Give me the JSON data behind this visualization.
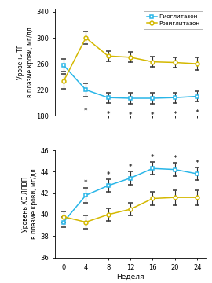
{
  "weeks": [
    0,
    4,
    8,
    12,
    16,
    20,
    24
  ],
  "tg_pio": [
    258,
    220,
    208,
    207,
    207,
    208,
    210
  ],
  "tg_rosi": [
    233,
    300,
    272,
    270,
    263,
    262,
    260
  ],
  "tg_pio_err": [
    10,
    10,
    8,
    8,
    8,
    8,
    8
  ],
  "tg_rosi_err": [
    12,
    10,
    8,
    8,
    8,
    8,
    10
  ],
  "hdl_pio": [
    39.3,
    41.8,
    42.7,
    43.4,
    44.3,
    44.2,
    43.8
  ],
  "hdl_rosi": [
    39.8,
    39.3,
    40.0,
    40.5,
    41.5,
    41.6,
    41.6
  ],
  "hdl_pio_err": [
    0.5,
    0.7,
    0.6,
    0.6,
    0.6,
    0.6,
    0.6
  ],
  "hdl_rosi_err": [
    0.5,
    0.6,
    0.6,
    0.6,
    0.6,
    0.7,
    0.7
  ],
  "color_pio": "#29b6e8",
  "color_rosi": "#d4b800",
  "tg_ylim": [
    180,
    345
  ],
  "tg_yticks": [
    180,
    220,
    260,
    300,
    340
  ],
  "tg_ytick_labels": [
    "180",
    "220",
    "260",
    "300",
    "340"
  ],
  "hdl_ylim": [
    36,
    46
  ],
  "hdl_yticks": [
    36,
    38,
    40,
    42,
    44,
    46
  ],
  "hdl_ytick_labels": [
    "36",
    "38",
    "40",
    "42",
    "44",
    "46"
  ],
  "xlabel": "Неделя",
  "tg_ylabel": "Уровень ТГ\nв плазме крови, мг/дл",
  "hdl_ylabel": "Уровень ХС ЛПВП\nв плазме крови, мг/дл",
  "legend_pio": "Пиоглитазон",
  "legend_rosi": "Розиглитазон",
  "tg_star_pio_weeks": [
    4,
    8,
    12,
    16,
    20,
    24
  ],
  "tg_star_pio_y": [
    193,
    188,
    187,
    187,
    188,
    190
  ],
  "hdl_star_pio_weeks": [
    4,
    8,
    12,
    16,
    20,
    24
  ],
  "hdl_star_pio_y": [
    42.6,
    43.4,
    44.1,
    45.0,
    44.9,
    44.5
  ],
  "xticks": [
    0,
    4,
    8,
    12,
    16,
    20,
    24
  ],
  "xtick_labels": [
    "0",
    "4",
    "8",
    "12",
    "16",
    "20",
    "24"
  ]
}
